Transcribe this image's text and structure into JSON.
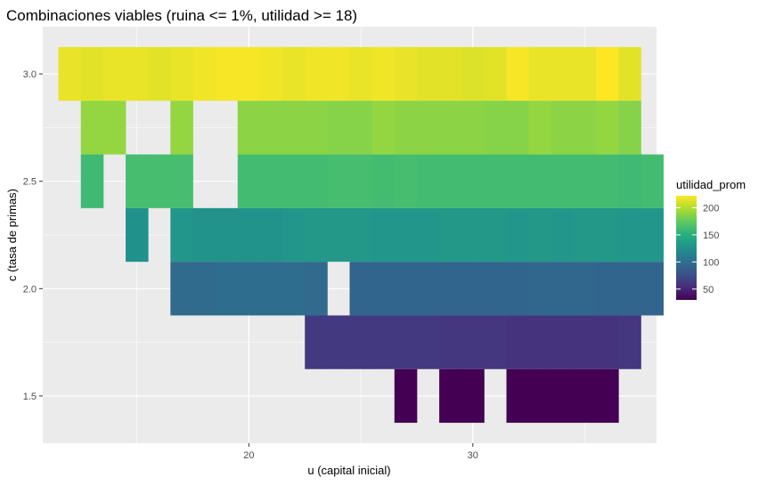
{
  "chart_data": {
    "type": "heatmap",
    "title": "Combinaciones viables (ruina <= 1%, utilidad >= 18)",
    "xlabel": "u (capital inicial)",
    "ylabel": "c (tasa de primas)",
    "xlim": [
      10.8,
      38.2
    ],
    "ylim": [
      1.28,
      3.22
    ],
    "x_ticks": [
      20,
      30
    ],
    "x_tick_labels": [
      "20",
      "30"
    ],
    "y_ticks": [
      1.5,
      2.0,
      2.5,
      3.0
    ],
    "y_tick_labels": [
      "1.5",
      "2.0",
      "2.5",
      "3.0"
    ],
    "tile_width": 1,
    "tile_height": 0.25,
    "grid": true,
    "legend": {
      "title": "utilidad_prom",
      "position": "right",
      "min": 30,
      "max": 222,
      "ticks": [
        50,
        100,
        150,
        200
      ],
      "tick_labels": [
        "50",
        "100",
        "150",
        "200"
      ]
    },
    "rows": [
      {
        "c": 3.0,
        "u_start": 12,
        "values": [
          216,
          214,
          216,
          216,
          214,
          216,
          218,
          220,
          220,
          218,
          216,
          218,
          218,
          216,
          218,
          216,
          214,
          214,
          212,
          214,
          220,
          216,
          216,
          216,
          222,
          214
        ]
      },
      {
        "c": 2.75,
        "u_start": 13,
        "values": [
          190,
          190,
          null,
          null,
          190,
          null,
          null,
          188,
          188,
          188,
          188,
          186,
          186,
          190,
          188,
          188,
          188,
          188,
          186,
          186,
          190,
          188,
          188,
          190,
          186
        ]
      },
      {
        "c": 2.5,
        "u_start": 13,
        "values": [
          160,
          null,
          164,
          164,
          164,
          null,
          null,
          162,
          162,
          162,
          162,
          164,
          164,
          162,
          164,
          162,
          162,
          162,
          162,
          162,
          162,
          162,
          162,
          162,
          160,
          162
        ]
      },
      {
        "c": 2.25,
        "u_start": 15,
        "values": [
          126,
          null,
          130,
          128,
          128,
          128,
          128,
          130,
          132,
          132,
          132,
          130,
          130,
          130,
          132,
          132,
          132,
          130,
          132,
          130,
          132,
          132,
          130,
          130
        ]
      },
      {
        "c": 2.0,
        "u_start": 17,
        "values": [
          96,
          96,
          98,
          98,
          98,
          98,
          96,
          null,
          92,
          92,
          92,
          92,
          92,
          92,
          92,
          92,
          94,
          94,
          94,
          92,
          92,
          92
        ]
      },
      {
        "c": 1.75,
        "u_start": 23,
        "values": [
          62,
          62,
          62,
          62,
          62,
          62,
          60,
          60,
          60,
          58,
          58,
          58,
          58,
          58,
          60
        ]
      },
      {
        "c": 1.5,
        "u_start": 27,
        "values": [
          30,
          null,
          30,
          30,
          null,
          30,
          30,
          30,
          30,
          30
        ]
      }
    ]
  }
}
